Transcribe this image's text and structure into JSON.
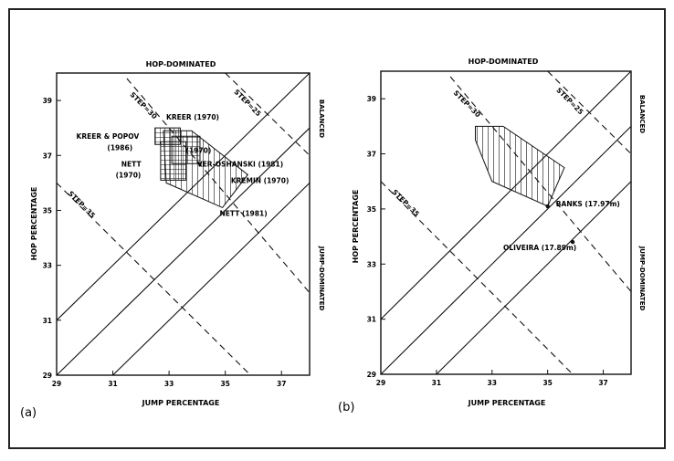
{
  "chart_data": [
    {
      "type": "line",
      "panel_label": "(a)",
      "top_label": "HOP-DOMINATED",
      "xlabel": "JUMP PERCENTAGE",
      "ylabel": "HOP PERCENTAGE",
      "right_label_top": "BALANCED",
      "right_label_bottom": "JUMP-DOMINATED",
      "xlim": [
        29,
        38
      ],
      "ylim": [
        29,
        40
      ],
      "xticks": [
        29,
        31,
        33,
        35,
        37
      ],
      "yticks": [
        29,
        31,
        33,
        35,
        37,
        39
      ],
      "xtick_labels": [
        "29",
        "31",
        "33",
        "35",
        "37"
      ],
      "ytick_labels": [
        "29",
        "31",
        "33",
        "35",
        "37",
        "39"
      ],
      "grid": false,
      "solid_lines": [
        {
          "x": [
            29,
            38
          ],
          "y": [
            31,
            40
          ]
        },
        {
          "x": [
            29,
            38
          ],
          "y": [
            29,
            38
          ]
        },
        {
          "x": [
            31,
            38
          ],
          "y": [
            29,
            36
          ]
        }
      ],
      "dashed_lines": [
        {
          "label": "STEP=30",
          "x": [
            31.5,
            38
          ],
          "y": [
            39.8,
            32
          ]
        },
        {
          "label": "STEP=25",
          "x": [
            35.0,
            38
          ],
          "y": [
            40,
            37
          ]
        },
        {
          "label": "STEP=35",
          "x": [
            29,
            35.9
          ],
          "y": [
            36,
            29
          ]
        }
      ],
      "regions": [
        {
          "name": "KREER (1970)",
          "pattern": "crosshatch",
          "points": [
            [
              32.5,
              38
            ],
            [
              33.4,
              38
            ],
            [
              33.4,
              37.4
            ],
            [
              32.5,
              37.4
            ]
          ]
        },
        {
          "name": "VER-OSHANSKI (1981)",
          "pattern": "crosshatch",
          "points": [
            [
              33.1,
              37.7
            ],
            [
              34.1,
              37.7
            ],
            [
              34.1,
              36.7
            ],
            [
              33.1,
              36.7
            ]
          ]
        },
        {
          "name": "NETT (1970)",
          "pattern": "crosshatch",
          "points": [
            [
              32.7,
              37.5
            ],
            [
              33.6,
              37.5
            ],
            [
              33.6,
              36.1
            ],
            [
              32.7,
              36.1
            ]
          ]
        },
        {
          "name": "KREMIN (1970)",
          "pattern": "hatch",
          "points": [
            [
              32.8,
              37.9
            ],
            [
              33.8,
              37.9
            ],
            [
              35.8,
              36.3
            ],
            [
              34.9,
              35.1
            ],
            [
              32.9,
              36.0
            ]
          ]
        }
      ],
      "annotations": [
        {
          "text": "KREER (1970)",
          "x": 32.9,
          "y": 38.3
        },
        {
          "text": "KREER & POPOV",
          "x": 29.7,
          "y": 37.6
        },
        {
          "text": "(1986)",
          "x": 30.8,
          "y": 37.2
        },
        {
          "text": "NETT",
          "x": 31.3,
          "y": 36.6
        },
        {
          "text": "(1970)",
          "x": 31.1,
          "y": 36.2
        },
        {
          "text": "(1970)",
          "x": 33.6,
          "y": 37.1
        },
        {
          "text": "VER-OSHANSKI (1981)",
          "x": 34.0,
          "y": 36.6
        },
        {
          "text": "KREMIN (1970)",
          "x": 35.2,
          "y": 36.0
        },
        {
          "text": "NETT (1981)",
          "x": 34.8,
          "y": 34.8
        }
      ]
    },
    {
      "type": "line",
      "panel_label": "(b)",
      "top_label": "HOP-DOMINATED",
      "xlabel": "JUMP PERCENTAGE",
      "ylabel": "HOP PERCENTAGE",
      "right_label_top": "BALANCED",
      "right_label_bottom": "JUMP-DOMINATED",
      "xlim": [
        29,
        38
      ],
      "ylim": [
        29,
        40
      ],
      "xticks": [
        29,
        31,
        33,
        35,
        37
      ],
      "yticks": [
        29,
        31,
        33,
        35,
        37,
        39
      ],
      "xtick_labels": [
        "29",
        "31",
        "33",
        "35",
        "37"
      ],
      "ytick_labels": [
        "29",
        "31",
        "33",
        "35",
        "37",
        "39"
      ],
      "grid": false,
      "solid_lines": [
        {
          "x": [
            29,
            38
          ],
          "y": [
            31,
            40
          ]
        },
        {
          "x": [
            29,
            38
          ],
          "y": [
            29,
            38
          ]
        },
        {
          "x": [
            31,
            38
          ],
          "y": [
            29,
            36
          ]
        }
      ],
      "dashed_lines": [
        {
          "label": "STEP=30",
          "x": [
            31.5,
            38
          ],
          "y": [
            39.8,
            32
          ]
        },
        {
          "label": "STEP=25",
          "x": [
            35.0,
            38
          ],
          "y": [
            40,
            37
          ]
        },
        {
          "label": "STEP=35",
          "x": [
            29,
            35.9
          ],
          "y": [
            36,
            29
          ]
        }
      ],
      "regions": [
        {
          "name": "",
          "pattern": "hatch",
          "points": [
            [
              32.4,
              38.0
            ],
            [
              33.4,
              38.0
            ],
            [
              35.6,
              36.5
            ],
            [
              35.0,
              35.1
            ],
            [
              33.0,
              36.0
            ],
            [
              32.4,
              37.5
            ]
          ]
        }
      ],
      "points": [
        {
          "label": "BANKS (17.97m)",
          "x": 35.0,
          "y": 35.1
        },
        {
          "label": "OLIVEIRA (17.89m)",
          "x": 35.9,
          "y": 33.8
        }
      ],
      "annotations": [
        {
          "text": "BANKS (17.97m)",
          "x": 35.3,
          "y": 35.1
        },
        {
          "text": "OLIVEIRA (17.89m)",
          "x": 33.4,
          "y": 33.5
        }
      ]
    }
  ]
}
